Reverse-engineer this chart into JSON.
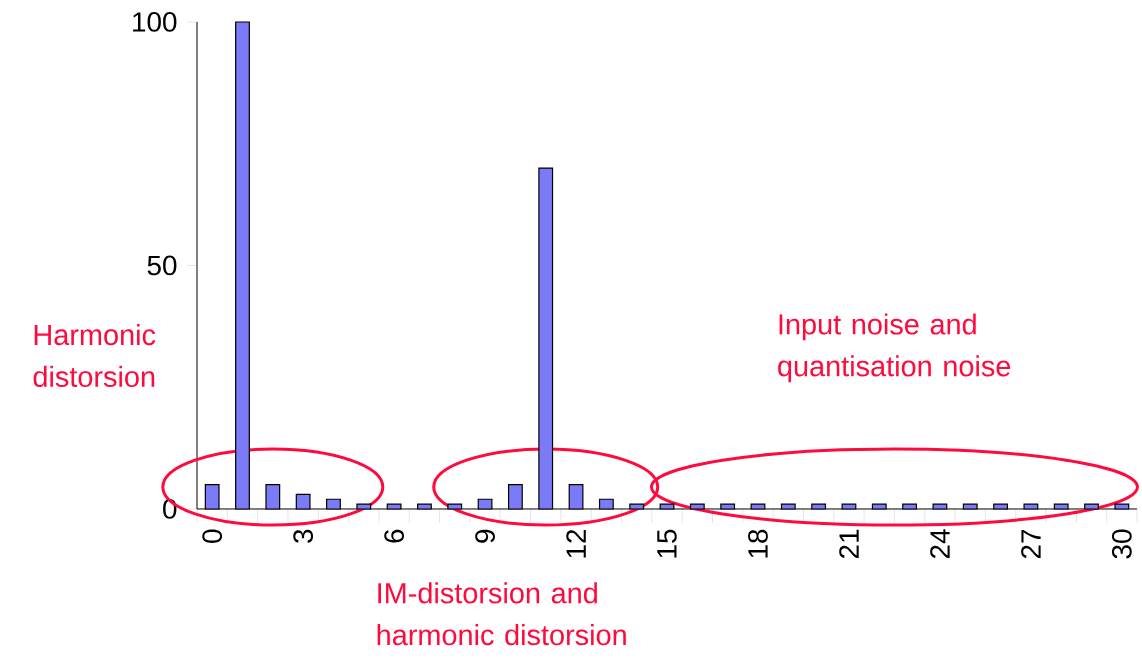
{
  "chart_data": {
    "type": "bar",
    "categories": [
      "0",
      null,
      null,
      "3",
      null,
      null,
      "6",
      null,
      null,
      "9",
      null,
      null,
      "12",
      null,
      null,
      "15",
      null,
      null,
      "18",
      null,
      null,
      "21",
      null,
      null,
      "24",
      null,
      null,
      "27",
      null,
      null,
      "30"
    ],
    "values": [
      5,
      100,
      5,
      3,
      2,
      1,
      1,
      1,
      1,
      2,
      5,
      70,
      5,
      2,
      1,
      1,
      1,
      1,
      1,
      1,
      1,
      1,
      1,
      1,
      1,
      1,
      1,
      1,
      1,
      1,
      1
    ],
    "color": "#7b7bf7",
    "ylim": [
      0,
      100
    ],
    "yticks": [
      0,
      50,
      100
    ],
    "grid": false,
    "annotations": [
      "Harmonic distorsion",
      "IM-distorsion and harmonic distorsion",
      "Input noise and quantisation noise"
    ]
  }
}
